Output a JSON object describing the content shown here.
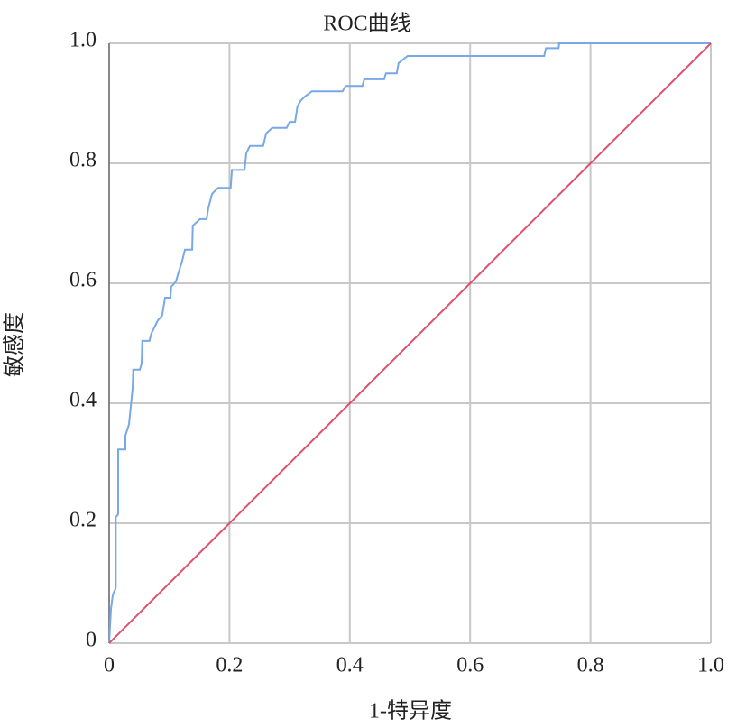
{
  "chart_data": {
    "type": "line",
    "title": "ROC曲线",
    "x_label": "1-特异度",
    "y_label": "敏感度",
    "xlim": [
      0,
      1
    ],
    "ylim": [
      0,
      1
    ],
    "xticks": [
      0,
      0.2,
      0.4,
      0.6,
      0.8,
      {
        "value": 1,
        "label": "1.0"
      }
    ],
    "yticks": [
      0,
      0.2,
      0.4,
      0.6,
      0.8,
      {
        "value": 1,
        "label": "1.0"
      }
    ],
    "grid": true,
    "series": [
      {
        "color": "#78a8e6",
        "x": [
          0,
          0.003,
          0.006,
          0.011,
          0.011,
          0.015,
          0.015,
          0.027,
          0.027,
          0.033,
          0.036,
          0.039,
          0.04,
          0.051,
          0.054,
          0.055,
          0.067,
          0.07,
          0.076,
          0.081,
          0.088,
          0.093,
          0.102,
          0.103,
          0.111,
          0.115,
          0.121,
          0.126,
          0.138,
          0.139,
          0.151,
          0.162,
          0.165,
          0.171,
          0.181,
          0.202,
          0.204,
          0.225,
          0.228,
          0.234,
          0.256,
          0.261,
          0.271,
          0.295,
          0.3,
          0.309,
          0.313,
          0.318,
          0.325,
          0.337,
          0.388,
          0.393,
          0.421,
          0.424,
          0.457,
          0.46,
          0.478,
          0.481,
          0.496,
          0.723,
          0.726,
          0.747,
          0.748,
          1
        ],
        "values": [
          0,
          0.057,
          0.08,
          0.092,
          0.21,
          0.215,
          0.323,
          0.323,
          0.346,
          0.365,
          0.395,
          0.425,
          0.456,
          0.456,
          0.466,
          0.504,
          0.504,
          0.516,
          0.528,
          0.538,
          0.546,
          0.576,
          0.576,
          0.594,
          0.603,
          0.617,
          0.636,
          0.656,
          0.656,
          0.696,
          0.707,
          0.707,
          0.726,
          0.749,
          0.759,
          0.759,
          0.789,
          0.789,
          0.817,
          0.829,
          0.829,
          0.85,
          0.859,
          0.859,
          0.869,
          0.869,
          0.895,
          0.904,
          0.911,
          0.92,
          0.92,
          0.929,
          0.929,
          0.94,
          0.94,
          0.95,
          0.95,
          0.967,
          0.979,
          0.979,
          0.992,
          0.992,
          1,
          1
        ]
      },
      {
        "color": "#e0506e",
        "x": [
          0,
          1
        ],
        "values": [
          0,
          1
        ]
      }
    ]
  }
}
